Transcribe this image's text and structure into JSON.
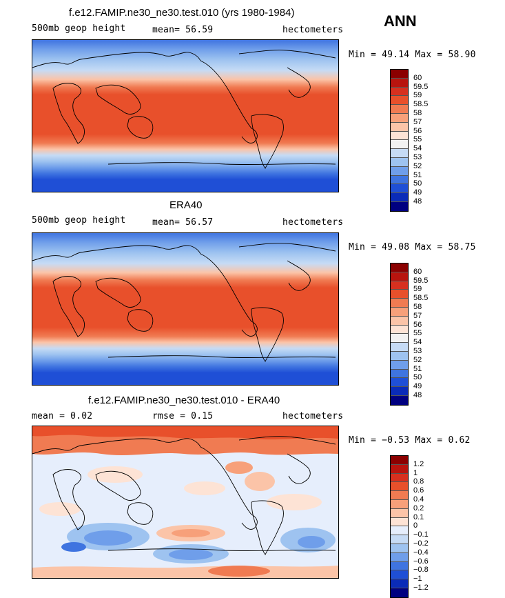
{
  "season": "ANN",
  "panels": [
    {
      "title": "f.e12.FAMIP.ne30_ne30.test.010 (yrs 1980-1984)",
      "left_label": "500mb geop height",
      "center_label": "mean=  56.59",
      "right_label": "hectometers",
      "minmax": "Min =  49.14 Max =  58.90",
      "kind": "abs"
    },
    {
      "title": "ERA40",
      "left_label": "500mb geop height",
      "center_label": "mean=  56.57",
      "right_label": "hectometers",
      "minmax": "Min =  49.08 Max =  58.75",
      "kind": "abs"
    },
    {
      "title": "f.e12.FAMIP.ne30_ne30.test.010 - ERA40",
      "left_label": "mean =   0.02",
      "center_label": "rmse =   0.15",
      "right_label": "hectometers",
      "minmax": "Min =  −0.53 Max =   0.62",
      "kind": "diff"
    }
  ],
  "colorbars": {
    "abs": {
      "labels": [
        "60",
        "59.5",
        "59",
        "58.5",
        "58",
        "57",
        "56",
        "55",
        "54",
        "53",
        "52",
        "51",
        "50",
        "49",
        "48"
      ],
      "colors": [
        "#8b0000",
        "#b8140e",
        "#d7301f",
        "#e8502b",
        "#f07b52",
        "#f7a07a",
        "#fbc4a8",
        "#fde3d5",
        "#f2f2f2",
        "#c6dbf5",
        "#9ec3f0",
        "#6f9eea",
        "#3f74e0",
        "#1f4fd6",
        "#0a2bb8",
        "#000080"
      ]
    },
    "diff": {
      "labels": [
        "1.2",
        "1",
        "0.8",
        "0.6",
        "0.4",
        "0.2",
        "0.1",
        "0",
        "−0.1",
        "−0.2",
        "−0.4",
        "−0.6",
        "−0.8",
        "−1",
        "−1.2"
      ],
      "colors": [
        "#8b0000",
        "#b8140e",
        "#d7301f",
        "#e8502b",
        "#f07b52",
        "#f7a07a",
        "#fbc4a8",
        "#fde3d5",
        "#e6eefc",
        "#c6dbf5",
        "#9ec3f0",
        "#6f9eea",
        "#3f74e0",
        "#1f4fd6",
        "#0a2bb8",
        "#000080"
      ]
    }
  }
}
